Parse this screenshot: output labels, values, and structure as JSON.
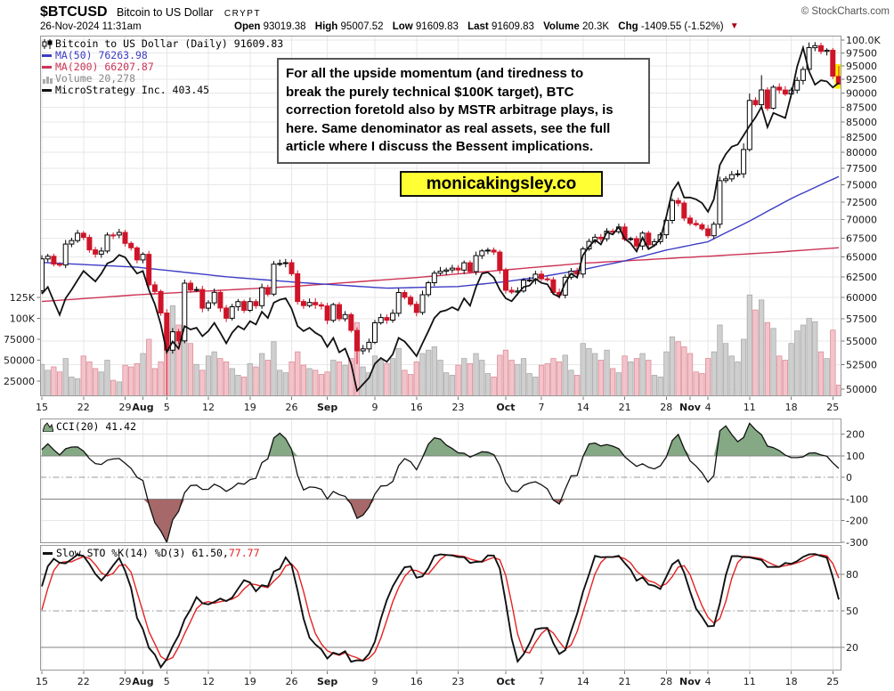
{
  "header": {
    "symbol": "$BTCUSD",
    "name": "Bitcoin to US Dollar",
    "exchange": "CRYPT",
    "datetime": "26-Nov-2024 11:31am",
    "copyright": "© StockCharts.com",
    "quote": {
      "open_label": "Open",
      "open": "93019.38",
      "high_label": "High",
      "high": "95007.52",
      "low_label": "Low",
      "low": "91609.83",
      "last_label": "Last",
      "last": "91609.83",
      "volume_label": "Volume",
      "volume": "20.3K",
      "chg_label": "Chg",
      "chg": "-1409.55 (-1.52%)",
      "direction": "down"
    }
  },
  "legend": {
    "main": "Bitcoin to US Dollar (Daily) 91609.83",
    "ma50": "MA(50) 76263.98",
    "ma200": "MA(200) 66207.87",
    "volume": "Volume 20,278",
    "overlay": "MicroStrategy Inc. 403.45",
    "cci": "CCI(20) 41.42",
    "sto_prefix": "Slow STO %K(14) %D(3) 61.50, ",
    "sto_d_value": "77.77"
  },
  "annotation": {
    "lines": [
      "For all the upside momentum (and tiredness to",
      "break the purely technical $100K target), BTC",
      "correction foretold also by MSTR arbitrage plays, is",
      "here. Same denominator as real assets, see the full",
      "article where I discuss the Bessent implications."
    ]
  },
  "promo": "monicakingsley.co",
  "colors": {
    "candle_up_fill": "#ffffff",
    "candle_up_stroke": "#000000",
    "candle_down": "#d01428",
    "ma50": "#3d3bc4",
    "ma200": "#cc3355",
    "overlay_line": "#111111",
    "vol_up_fill": "#cfcfcf",
    "vol_up_stroke": "#a8a8a8",
    "vol_down_fill": "#f3c3ca",
    "vol_down_stroke": "#d98a96",
    "cci_line": "#111111",
    "cci_fill_high": "#84a984",
    "cci_fill_low": "#a66868",
    "sto_k": "#111111",
    "sto_d": "#e32222",
    "grid": "#e7e7e7",
    "panel_border": "#999999",
    "signal_line": "#808080",
    "highlight": "#ffef00"
  },
  "chart_data": {
    "type": "candlestick",
    "title": "Bitcoin to US Dollar (Daily)",
    "scale": "log",
    "price_axis": {
      "labels": [
        "100.0K",
        "97500",
        "95000",
        "92500",
        "90000",
        "87500",
        "85000",
        "82500",
        "80000",
        "77500",
        "75000",
        "72500",
        "70000",
        "67500",
        "65000",
        "62500",
        "60000",
        "57500",
        "55000",
        "52500",
        "50000"
      ],
      "values": [
        100000,
        97500,
        95000,
        92500,
        90000,
        87500,
        85000,
        82500,
        80000,
        77500,
        75000,
        72500,
        70000,
        67500,
        65000,
        62500,
        60000,
        57500,
        55000,
        52500,
        50000
      ]
    },
    "volume_axis": {
      "labels": [
        "125K",
        "100K",
        "75000",
        "50000",
        "25000"
      ],
      "values": [
        125000,
        100000,
        75000,
        50000,
        25000
      ]
    },
    "cci_axis": [
      200,
      100,
      0,
      -100,
      -200,
      -300
    ],
    "cci_signal_levels": [
      100,
      -100
    ],
    "cci_zero_level": 0,
    "sto_axis": [
      80,
      50,
      20
    ],
    "sto_signal_levels": [
      80,
      20
    ],
    "sto_mid_level": 50,
    "date_ticks": [
      {
        "label": "15",
        "i": 0,
        "month": false
      },
      {
        "label": "22",
        "i": 7,
        "month": false
      },
      {
        "label": "29",
        "i": 14,
        "month": false
      },
      {
        "label": "Aug",
        "i": 17,
        "month": true
      },
      {
        "label": "5",
        "i": 21,
        "month": false
      },
      {
        "label": "12",
        "i": 28,
        "month": false
      },
      {
        "label": "19",
        "i": 35,
        "month": false
      },
      {
        "label": "26",
        "i": 42,
        "month": false
      },
      {
        "label": "Sep",
        "i": 48,
        "month": true
      },
      {
        "label": "9",
        "i": 56,
        "month": false
      },
      {
        "label": "16",
        "i": 63,
        "month": false
      },
      {
        "label": "23",
        "i": 70,
        "month": false
      },
      {
        "label": "Oct",
        "i": 78,
        "month": true
      },
      {
        "label": "7",
        "i": 84,
        "month": false
      },
      {
        "label": "14",
        "i": 91,
        "month": false
      },
      {
        "label": "21",
        "i": 98,
        "month": false
      },
      {
        "label": "28",
        "i": 105,
        "month": false
      },
      {
        "label": "Nov",
        "i": 109,
        "month": true
      },
      {
        "label": "4",
        "i": 112,
        "month": false
      },
      {
        "label": "11",
        "i": 119,
        "month": false
      },
      {
        "label": "18",
        "i": 126,
        "month": false
      },
      {
        "label": "25",
        "i": 133,
        "month": false
      }
    ],
    "lead_in_count": 20,
    "lead_in_closes": [
      61800,
      60850,
      61700,
      60320,
      61000,
      62680,
      62900,
      62130,
      60170,
      57050,
      56660,
      58300,
      55850,
      56700,
      58050,
      57730,
      57340,
      57900,
      59200,
      60800
    ],
    "closes": [
      64760,
      65100,
      64090,
      63970,
      66690,
      67160,
      68150,
      67580,
      65930,
      65370,
      65780,
      67910,
      67900,
      68250,
      66780,
      66190,
      64630,
      65350,
      61500,
      60700,
      58160,
      54020,
      56030,
      55030,
      61710,
      60880,
      60940,
      58720,
      59350,
      60600,
      58740,
      57560,
      58890,
      59490,
      58470,
      59490,
      59010,
      61170,
      60380,
      64090,
      64170,
      64270,
      62880,
      59505,
      59025,
      59388,
      59119,
      58975,
      57315,
      59132,
      57489,
      57971,
      56180,
      53950,
      54160,
      54870,
      57040,
      57640,
      57340,
      58130,
      60570,
      60010,
      59180,
      58220,
      60310,
      61760,
      62940,
      63190,
      63350,
      63580,
      63340,
      64260,
      63150,
      65180,
      65790,
      65890,
      65640,
      63330,
      60840,
      60630,
      60760,
      62070,
      62090,
      62820,
      62240,
      62130,
      60580,
      60270,
      62450,
      63190,
      62850,
      66050,
      67040,
      67610,
      67400,
      68420,
      68360,
      69000,
      67350,
      67410,
      66430,
      68160,
      66600,
      67010,
      67930,
      69910,
      72720,
      72340,
      70220,
      69480,
      69290,
      68740,
      67810,
      69370,
      75640,
      75900,
      76550,
      76680,
      80470,
      88700,
      87960,
      90580,
      87330,
      91070,
      90560,
      89850,
      90540,
      92310,
      94340,
      98500,
      98900,
      97780,
      98010,
      93100,
      91609.83
    ],
    "hl_overrides": {
      "21": {
        "low": 49220
      },
      "53": {
        "low": 52550
      },
      "118": {
        "high": 81460
      },
      "119": {
        "high": 89940
      },
      "121": {
        "high": 93250
      },
      "123": {
        "low": 87120
      },
      "129": {
        "high": 99520
      },
      "130": {
        "high": 99590
      },
      "134": {
        "open": 93019.38,
        "high": 95007.52,
        "low": 91609.83
      }
    },
    "volumes_k": [
      45,
      38,
      42,
      36,
      52,
      30,
      28,
      55,
      48,
      40,
      36,
      50,
      26,
      24,
      44,
      42,
      46,
      58,
      75,
      40,
      48,
      88,
      115,
      92,
      85,
      70,
      45,
      38,
      55,
      60,
      52,
      48,
      40,
      32,
      30,
      46,
      42,
      58,
      50,
      72,
      38,
      35,
      48,
      60,
      44,
      40,
      38,
      33,
      36,
      50,
      48,
      44,
      52,
      95,
      42,
      35,
      55,
      50,
      46,
      52,
      64,
      38,
      33,
      48,
      58,
      62,
      66,
      50,
      35,
      32,
      44,
      52,
      46,
      58,
      50,
      34,
      30,
      56,
      62,
      50,
      45,
      52,
      34,
      30,
      44,
      46,
      52,
      48,
      56,
      38,
      32,
      70,
      64,
      58,
      50,
      62,
      40,
      35,
      55,
      48,
      52,
      58,
      50,
      32,
      30,
      60,
      78,
      72,
      66,
      58,
      36,
      34,
      52,
      60,
      92,
      70,
      55,
      48,
      75,
      128,
      110,
      122,
      95,
      88,
      55,
      50,
      70,
      85,
      92,
      100,
      96,
      60,
      52,
      86,
      20.278
    ],
    "last_volume": 20278,
    "mstr_overlay": [
      155,
      160,
      150,
      141,
      152,
      158,
      165,
      172,
      168,
      164,
      170,
      178,
      180,
      185,
      183,
      176,
      170,
      172,
      158,
      148,
      135,
      119,
      125,
      121,
      134,
      132,
      133,
      128,
      131,
      136,
      130,
      124,
      130,
      134,
      132,
      137,
      135,
      143,
      139,
      149,
      151,
      152,
      145,
      134,
      131,
      133,
      130,
      128,
      122,
      127,
      119,
      121,
      113,
      100,
      103,
      106,
      113,
      116,
      114,
      118,
      127,
      125,
      121,
      117,
      124,
      131,
      139,
      143,
      144,
      146,
      144,
      152,
      147,
      160,
      170,
      171,
      167,
      158,
      152,
      150,
      155,
      160,
      161,
      166,
      163,
      162,
      155,
      153,
      163,
      170,
      167,
      185,
      192,
      198,
      194,
      205,
      203,
      210,
      199,
      195,
      188,
      200,
      190,
      193,
      199,
      220,
      247,
      257,
      240,
      240,
      238,
      234,
      225,
      238,
      278,
      292,
      302,
      305,
      318,
      332,
      345,
      362,
      330,
      352,
      348,
      344,
      382,
      434,
      473,
      425,
      400,
      408,
      406,
      395,
      403.45
    ],
    "ma50_keypoints": [
      [
        0,
        64300
      ],
      [
        16,
        63700
      ],
      [
        31,
        62500
      ],
      [
        43,
        61800
      ],
      [
        58,
        61100
      ],
      [
        70,
        61300
      ],
      [
        78,
        61900
      ],
      [
        84,
        62500
      ],
      [
        91,
        63400
      ],
      [
        98,
        64500
      ],
      [
        105,
        65900
      ],
      [
        112,
        67000
      ],
      [
        119,
        69800
      ],
      [
        126,
        73000
      ],
      [
        134,
        76263.98
      ]
    ],
    "ma200_keypoints": [
      [
        0,
        59500
      ],
      [
        16,
        60300
      ],
      [
        42,
        61300
      ],
      [
        63,
        62400
      ],
      [
        77,
        63300
      ],
      [
        91,
        64200
      ],
      [
        105,
        64800
      ],
      [
        112,
        65100
      ],
      [
        123,
        65600
      ],
      [
        134,
        66207.87
      ]
    ],
    "indicators": {
      "cci": {
        "period": 20,
        "last": 41.42
      },
      "slow_sto": {
        "k": 14,
        "d": 3,
        "k_last": 61.5,
        "d_last": 77.77
      }
    }
  }
}
